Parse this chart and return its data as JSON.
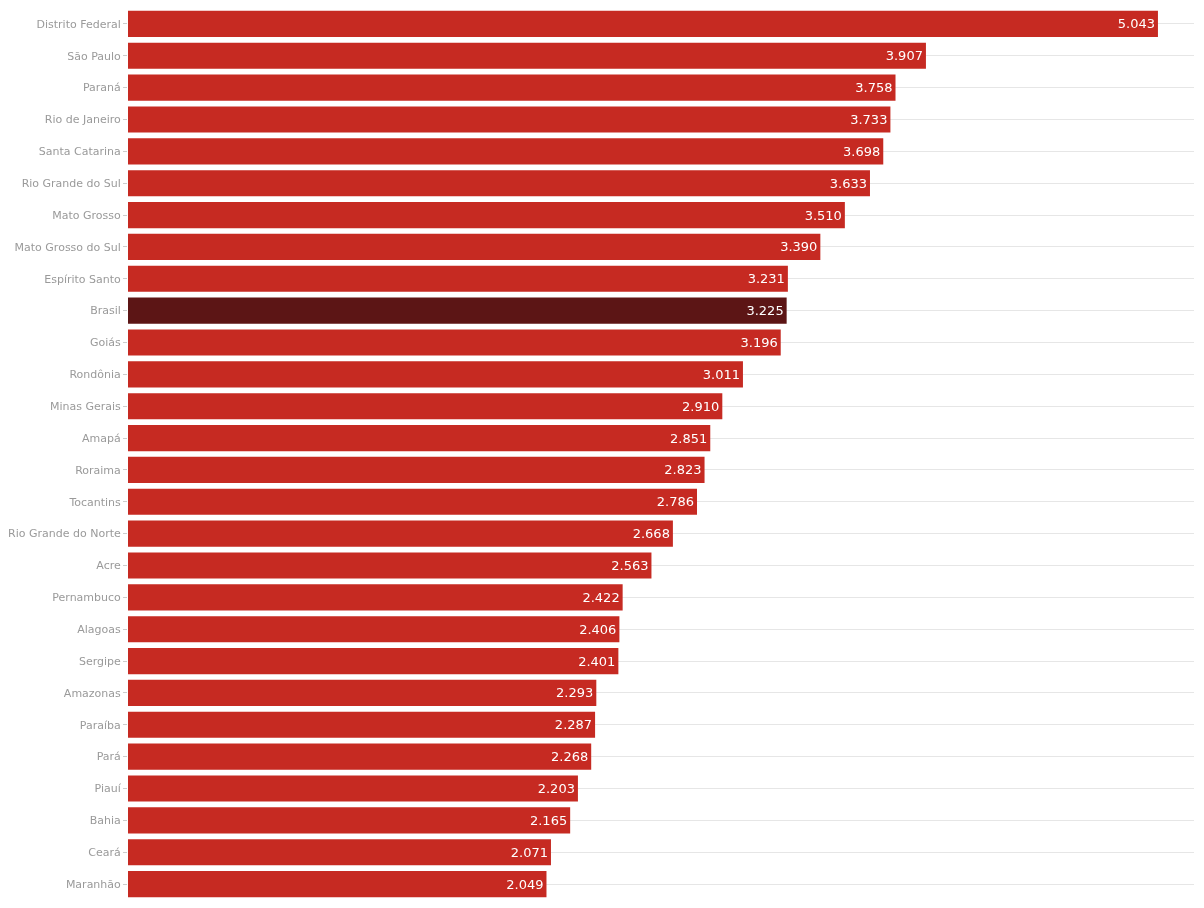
{
  "chart_data": {
    "type": "bar",
    "orientation": "horizontal",
    "categories": [
      "Distrito Federal",
      "São Paulo",
      "Paraná",
      "Rio de Janeiro",
      "Santa Catarina",
      "Rio Grande do Sul",
      "Mato Grosso",
      "Mato Grosso do Sul",
      "Espírito Santo",
      "Brasil",
      "Goiás",
      "Rondônia",
      "Minas Gerais",
      "Amapá",
      "Roraima",
      "Tocantins",
      "Rio Grande do Norte",
      "Acre",
      "Pernambuco",
      "Alagoas",
      "Sergipe",
      "Amazonas",
      "Paraíba",
      "Pará",
      "Piauí",
      "Bahia",
      "Ceará",
      "Maranhão"
    ],
    "values": [
      5043,
      3907,
      3758,
      3733,
      3698,
      3633,
      3510,
      3390,
      3231,
      3225,
      3196,
      3011,
      2910,
      2851,
      2823,
      2786,
      2668,
      2563,
      2422,
      2406,
      2401,
      2293,
      2287,
      2268,
      2203,
      2165,
      2071,
      2049
    ],
    "value_labels": [
      "5.043",
      "3.907",
      "3.758",
      "3.733",
      "3.698",
      "3.633",
      "3.510",
      "3.390",
      "3.231",
      "3.225",
      "3.196",
      "3.011",
      "2.910",
      "2.851",
      "2.823",
      "2.786",
      "2.668",
      "2.563",
      "2.422",
      "2.406",
      "2.401",
      "2.293",
      "2.287",
      "2.268",
      "2.203",
      "2.165",
      "2.071",
      "2.049"
    ],
    "colors": [
      "#c62a22",
      "#c62a22",
      "#c62a22",
      "#c62a22",
      "#c62a22",
      "#c62a22",
      "#c62a22",
      "#c62a22",
      "#c62a22",
      "#5c1515",
      "#c62a22",
      "#c62a22",
      "#c62a22",
      "#c62a22",
      "#c62a22",
      "#c62a22",
      "#c62a22",
      "#c62a22",
      "#c62a22",
      "#c62a22",
      "#c62a22",
      "#c62a22",
      "#c62a22",
      "#c62a22",
      "#c62a22",
      "#c62a22",
      "#c62a22",
      "#c62a22"
    ],
    "grid": "y",
    "tick_labels": "y"
  }
}
